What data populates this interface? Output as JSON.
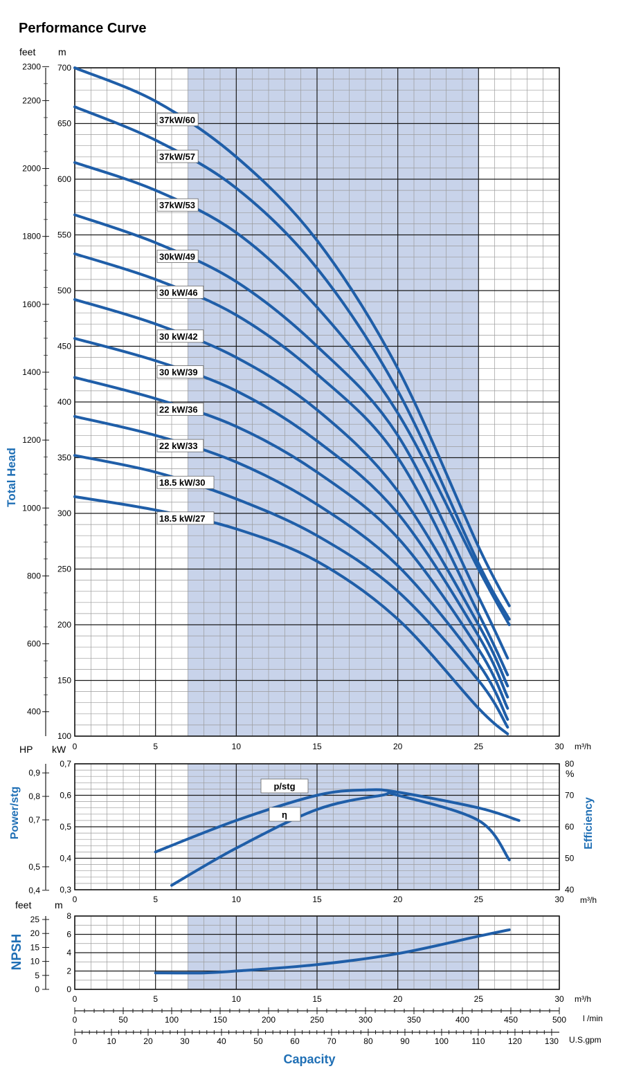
{
  "title": "Performance Curve",
  "colors": {
    "curve": "#1f5ea8",
    "shade": "#c8d3ea",
    "axis_label": "#1f6fb5",
    "grid_major": "#1a1a1a",
    "grid_minor": "#9a9a9a"
  },
  "chart_data": [
    {
      "type": "line",
      "name": "head",
      "ylabel": "Total Head",
      "unit_left": "feet",
      "unit_right": "m",
      "xunit": "m³/h",
      "xlim": [
        0,
        30
      ],
      "ylim": [
        100,
        700
      ],
      "shaded_range": [
        7,
        25
      ],
      "x_ticks": [
        "0",
        "5",
        "10",
        "15",
        "20",
        "25",
        "30"
      ],
      "y_ticks_m": [
        "100",
        "150",
        "200",
        "250",
        "300",
        "350",
        "400",
        "450",
        "500",
        "550",
        "600",
        "650",
        "700"
      ],
      "y_ticks_feet": [
        "400",
        "600",
        "800",
        "1000",
        "1200",
        "1400",
        "1600",
        "1800",
        "2000",
        "2200",
        "2300"
      ],
      "series": [
        {
          "name": "37kW/60",
          "x": [
            0,
            5,
            10,
            15,
            20,
            25,
            26.9
          ],
          "y": [
            700,
            670,
            620,
            545,
            430,
            270,
            217
          ]
        },
        {
          "name": "37kW/57",
          "x": [
            0,
            5,
            10,
            15,
            20,
            25,
            26.9
          ],
          "y": [
            665,
            635,
            592,
            520,
            410,
            255,
            205
          ]
        },
        {
          "name": "37kW/53",
          "x": [
            0,
            5,
            10,
            15,
            20,
            25,
            26.9
          ],
          "y": [
            615,
            590,
            552,
            485,
            390,
            250,
            200
          ]
        },
        {
          "name": "30kW/49",
          "x": [
            0,
            5,
            10,
            15,
            20,
            25,
            26.8
          ],
          "y": [
            568,
            543,
            508,
            450,
            370,
            225,
            170
          ]
        },
        {
          "name": "30 kW/46",
          "x": [
            0,
            5,
            10,
            15,
            20,
            25,
            26.8
          ],
          "y": [
            533,
            510,
            478,
            425,
            350,
            210,
            155
          ]
        },
        {
          "name": "30 kW/42",
          "x": [
            0,
            5,
            10,
            15,
            20,
            25,
            26.8
          ],
          "y": [
            492,
            470,
            440,
            393,
            320,
            200,
            145
          ]
        },
        {
          "name": "30 kW/39",
          "x": [
            0,
            5,
            10,
            15,
            20,
            25,
            26.8
          ],
          "y": [
            457,
            437,
            410,
            365,
            300,
            190,
            135
          ]
        },
        {
          "name": "22 kW/36",
          "x": [
            0,
            5,
            10,
            15,
            20,
            25,
            26.8
          ],
          "y": [
            422,
            403,
            378,
            337,
            278,
            178,
            125
          ]
        },
        {
          "name": "22 kW/33",
          "x": [
            0,
            5,
            10,
            15,
            20,
            25,
            26.8
          ],
          "y": [
            387,
            370,
            346,
            308,
            253,
            165,
            115
          ]
        },
        {
          "name": "18.5 kW/30",
          "x": [
            0,
            5,
            10,
            15,
            20,
            25,
            26.8
          ],
          "y": [
            352,
            337,
            313,
            280,
            230,
            150,
            108
          ]
        },
        {
          "name": "18.5 kW/27",
          "x": [
            0,
            5,
            10,
            15,
            20,
            25,
            26.8
          ],
          "y": [
            315,
            303,
            286,
            257,
            205,
            125,
            102
          ]
        }
      ]
    },
    {
      "type": "line",
      "name": "power-efficiency",
      "ylabel": "Power/stg",
      "ylabel_right": "Efficiency",
      "unit_left_hp": "HP",
      "unit_left_kw": "kW",
      "unit_right": "%",
      "xunit": "m³/h",
      "xlim": [
        0,
        30
      ],
      "ylim_kw": [
        0.3,
        0.7
      ],
      "ylim_pct": [
        40,
        80
      ],
      "shaded_range": [
        7,
        25
      ],
      "x_ticks": [
        "0",
        "5",
        "10",
        "15",
        "20",
        "25",
        "30"
      ],
      "y_ticks_kw": [
        "0,3",
        "0,4",
        "0,5",
        "0,6",
        "0,7"
      ],
      "y_ticks_hp": [
        "0,4",
        "0,5",
        "0,7",
        "0,8",
        "0,9"
      ],
      "y_ticks_pct": [
        "40",
        "50",
        "60",
        "70",
        "80"
      ],
      "series": [
        {
          "name": "p/stg",
          "x": [
            5,
            10,
            15,
            18,
            20,
            25,
            27.5
          ],
          "y": [
            0.42,
            0.52,
            0.6,
            0.617,
            0.61,
            0.56,
            0.52
          ]
        },
        {
          "name": "η",
          "x": [
            6,
            10,
            15,
            19,
            20,
            25,
            26.9
          ],
          "y": [
            0.314,
            0.432,
            0.555,
            0.6,
            0.6,
            0.52,
            0.395
          ]
        }
      ]
    },
    {
      "type": "line",
      "name": "npsh",
      "ylabel": "NPSH",
      "unit_left": "feet",
      "unit_right": "m",
      "xunit": "m³/h",
      "xlim": [
        0,
        30
      ],
      "ylim": [
        0,
        8
      ],
      "shaded_range": [
        7,
        25
      ],
      "x_ticks": [
        "0",
        "5",
        "10",
        "15",
        "20",
        "25",
        "30"
      ],
      "y_ticks_m": [
        "0",
        "2",
        "4",
        "6",
        "8"
      ],
      "y_ticks_feet": [
        "0",
        "5",
        "10",
        "15",
        "20",
        "25"
      ],
      "series": [
        {
          "name": "NPSH",
          "x": [
            5,
            8,
            10,
            15,
            20,
            25,
            26.9
          ],
          "y": [
            1.8,
            1.8,
            2.0,
            2.7,
            3.9,
            5.8,
            6.5
          ]
        }
      ]
    }
  ],
  "capacity_scales": {
    "xlabel": "Capacity",
    "lmin": {
      "unit": "l /min",
      "ticks": [
        "0",
        "50",
        "100",
        "150",
        "200",
        "250",
        "300",
        "350",
        "400",
        "450",
        "500"
      ]
    },
    "gpm": {
      "unit": "U.S.gpm",
      "ticks": [
        "0",
        "10",
        "20",
        "30",
        "40",
        "50",
        "60",
        "70",
        "80",
        "90",
        "100",
        "110",
        "120",
        "130"
      ]
    }
  }
}
